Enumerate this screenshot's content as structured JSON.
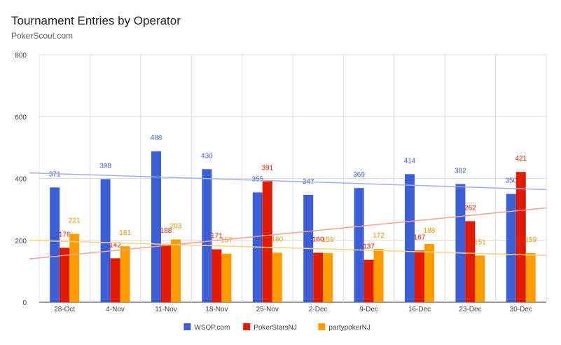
{
  "chart_data": {
    "type": "bar",
    "title": "Tournament Entries by Operator",
    "subtitle": "PokerScout.com",
    "xlabel": "",
    "ylabel": "",
    "ylim": [
      0,
      800
    ],
    "yticks": [
      0,
      200,
      400,
      600,
      800
    ],
    "grid": true,
    "legend_position": "bottom",
    "categories": [
      "28-Oct",
      "4-Nov",
      "11-Nov",
      "18-Nov",
      "25-Nov",
      "2-Dec",
      "9-Dec",
      "16-Dec",
      "23-Dec",
      "30-Dec"
    ],
    "series": [
      {
        "name": "WSOP.com",
        "color": "#3c5fd8",
        "label_color": "#3c5fd8",
        "trend_color": "#9fb0ea",
        "values": [
          371,
          398,
          488,
          430,
          355,
          347,
          369,
          414,
          382,
          350
        ],
        "trend": [
          418,
          364
        ]
      },
      {
        "name": "PokerStarsNJ",
        "color": "#e21b00",
        "label_color": "#e21b00",
        "trend_color": "#f4a193",
        "values": [
          176,
          142,
          188,
          171,
          391,
          160,
          137,
          167,
          262,
          421
        ],
        "trend": [
          140,
          305
        ]
      },
      {
        "name": "partypokerNJ",
        "color": "#ff9d00",
        "label_color": "#e89300",
        "trend_color": "#fdd27f",
        "values": [
          221,
          181,
          203,
          157,
          160,
          159,
          172,
          188,
          151,
          159
        ],
        "trend": [
          200,
          151
        ]
      }
    ]
  }
}
